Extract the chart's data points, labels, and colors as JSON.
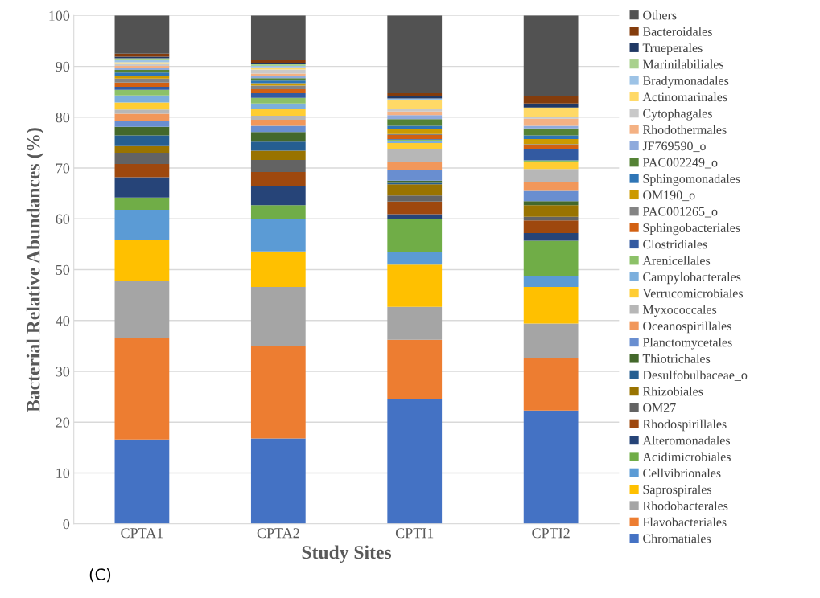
{
  "chart_data": {
    "type": "bar",
    "stacked": true,
    "xlabel": "Study Sites",
    "ylabel": "Bacterial Relative Abundances (%)",
    "categories": [
      "CPTA1",
      "CPTA2",
      "CPTI1",
      "CPTI2"
    ],
    "ylim": [
      0,
      100
    ],
    "yticks": [
      0,
      10,
      20,
      30,
      40,
      50,
      60,
      70,
      80,
      90,
      100
    ],
    "grid": "y",
    "legend": "right",
    "annotations": [
      "(C)"
    ],
    "series": [
      {
        "name": "Chromatiales",
        "color": "#4472c4",
        "values": [
          16.6,
          16.8,
          24.5,
          22.3
        ]
      },
      {
        "name": "Flavobacteriales",
        "color": "#ed7d31",
        "values": [
          20.0,
          18.2,
          11.7,
          10.3
        ]
      },
      {
        "name": "Rhodobacterales",
        "color": "#a5a5a5",
        "values": [
          11.2,
          11.6,
          6.5,
          6.8
        ]
      },
      {
        "name": "Saprospirales",
        "color": "#ffc000",
        "values": [
          8.1,
          7.0,
          8.3,
          7.2
        ]
      },
      {
        "name": "Cellvibrionales",
        "color": "#5b9bd5",
        "values": [
          5.9,
          6.4,
          2.5,
          2.2
        ]
      },
      {
        "name": "Acidimicrobiales",
        "color": "#70ad47",
        "values": [
          2.4,
          2.7,
          6.5,
          6.9
        ]
      },
      {
        "name": "Alteromonadales",
        "color": "#264478",
        "values": [
          4.0,
          3.7,
          0.9,
          1.5
        ]
      },
      {
        "name": "Rhodospirillales",
        "color": "#9e480e",
        "values": [
          2.6,
          2.8,
          2.5,
          2.5
        ]
      },
      {
        "name": "OM27",
        "color": "#636363",
        "values": [
          2.2,
          2.4,
          1.2,
          0.7
        ]
      },
      {
        "name": "Rhizobiales",
        "color": "#997300",
        "values": [
          1.3,
          1.8,
          2.2,
          2.3
        ]
      },
      {
        "name": "Desulfobulbaceae_o",
        "color": "#255e91",
        "values": [
          2.1,
          1.8,
          0.3,
          null
        ]
      },
      {
        "name": "Thiotrichales",
        "color": "#43682b",
        "values": [
          1.7,
          1.9,
          0.4,
          0.8
        ]
      },
      {
        "name": "Planctomycetales",
        "color": "#698ed0",
        "values": [
          1.2,
          1.2,
          2.1,
          2.0
        ]
      },
      {
        "name": "Oceanospirillales",
        "color": "#f1975a",
        "values": [
          1.4,
          1.2,
          1.6,
          1.7
        ]
      },
      {
        "name": "Myxococcales",
        "color": "#b7b7b7",
        "values": [
          0.8,
          0.8,
          2.5,
          2.6
        ]
      },
      {
        "name": "Verrucomicrobiales",
        "color": "#ffcd33",
        "values": [
          1.4,
          1.3,
          1.2,
          1.4
        ]
      },
      {
        "name": "Campylobacterales",
        "color": "#7cafdd",
        "values": [
          1.4,
          1.1,
          0.5,
          null
        ]
      },
      {
        "name": "Arenicellales",
        "color": "#8cc168",
        "values": [
          1.1,
          1.1,
          0.2,
          0.3
        ]
      },
      {
        "name": "Clostridiales",
        "color": "#335aa1",
        "values": [
          0.6,
          0.9,
          0.1,
          2.3
        ]
      },
      {
        "name": "Sphingobacteriales",
        "color": "#d26012",
        "values": [
          0.8,
          0.8,
          0.8,
          0.7
        ]
      },
      {
        "name": "PAC001265_o",
        "color": "#848484",
        "values": [
          0.8,
          0.7,
          0.2,
          0.2
        ]
      },
      {
        "name": "OM190_o",
        "color": "#cc9a00",
        "values": [
          0.5,
          0.5,
          0.9,
          1.0
        ]
      },
      {
        "name": "Sphingomonadales",
        "color": "#2e75b6",
        "values": [
          0.7,
          0.5,
          0.7,
          0.7
        ]
      },
      {
        "name": "PAC002249_o",
        "color": "#548235",
        "values": [
          0.5,
          0.5,
          1.3,
          1.4
        ]
      },
      {
        "name": "JF769590_o",
        "color": "#8faadc",
        "values": [
          0.4,
          0.4,
          0.8,
          0.5
        ]
      },
      {
        "name": "Rhodothermales",
        "color": "#f4b183",
        "values": [
          0.4,
          0.5,
          0.7,
          1.4
        ]
      },
      {
        "name": "Cytophagales",
        "color": "#c9c9c9",
        "values": [
          0.4,
          0.8,
          0.6,
          0.3
        ]
      },
      {
        "name": "Actinomarinales",
        "color": "#ffd966",
        "values": [
          0.3,
          0.4,
          1.7,
          1.9
        ]
      },
      {
        "name": "Bradymonadales",
        "color": "#9dc3e6",
        "values": [
          0.4,
          0.3,
          0.3,
          null
        ]
      },
      {
        "name": "Marinilabiliales",
        "color": "#a9d18e",
        "values": [
          0.4,
          0.3,
          null,
          null
        ]
      },
      {
        "name": "Trueperales",
        "color": "#203864",
        "values": [
          0.3,
          0.3,
          0.5,
          0.8
        ]
      },
      {
        "name": "Bacteroidales",
        "color": "#843c0c",
        "values": [
          0.6,
          0.5,
          0.5,
          1.4
        ]
      },
      {
        "name": "Others",
        "color": "#525252",
        "values": [
          7.5,
          8.8,
          15.3,
          15.9
        ]
      }
    ]
  }
}
